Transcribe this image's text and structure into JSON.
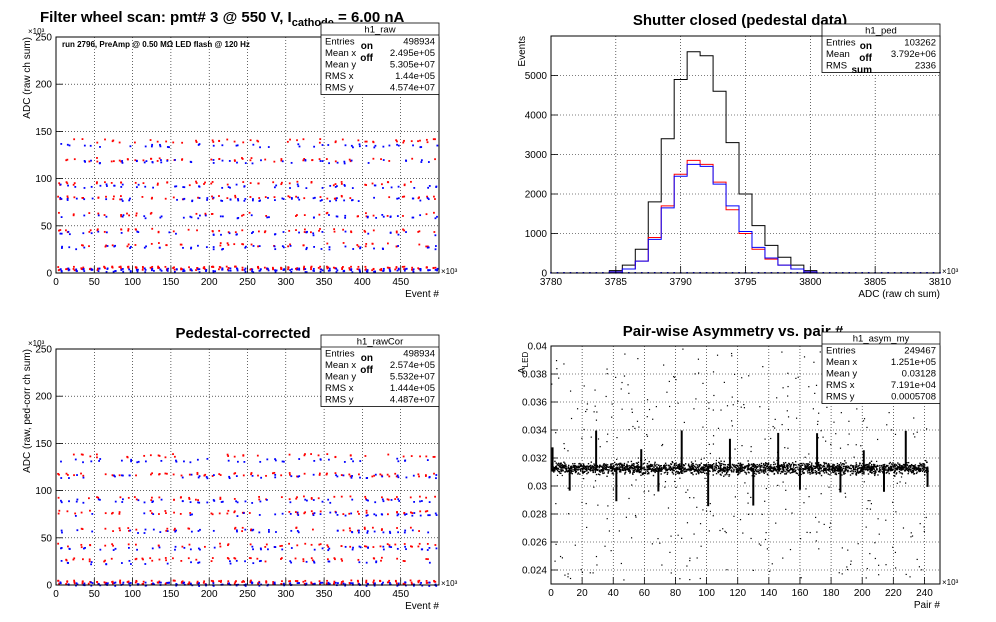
{
  "chart_data": [
    {
      "id": "raw",
      "type": "scatter",
      "title": "Filter wheel scan: pmt#",
      "title_pmt": "3",
      "title_at": "@",
      "title_voltage": "550 V, I",
      "title_sub": "cathode",
      "title_current": "= 6.00 nA",
      "note": "run 2796, PreAmp @ 0.50 MΩ LED flash @  120 Hz",
      "xlabel": "Event #",
      "ylabel": "ADC (raw ch sum)",
      "x_multiplier": "×10³",
      "y_multiplier": "×10³",
      "xlim": [
        0,
        500000
      ],
      "ylim": [
        0,
        250000
      ],
      "x_ticks": [
        "0",
        "50",
        "100",
        "150",
        "200",
        "250",
        "300",
        "350",
        "400",
        "450"
      ],
      "y_ticks": [
        "0",
        "50",
        "100",
        "150",
        "200",
        "250"
      ],
      "grid": true,
      "series": [
        {
          "name": "on",
          "color": "#ff0000",
          "levels": [
            140000,
            120000,
            95000,
            80000,
            62000,
            45000,
            30000,
            5000
          ]
        },
        {
          "name": "off",
          "color": "#0000ff",
          "levels": [
            135000,
            118000,
            92000,
            78000,
            60000,
            42000,
            27000,
            3000
          ]
        }
      ],
      "legend": [
        "on",
        "off"
      ],
      "stats": {
        "name": "h1_raw",
        "rows": [
          {
            "label": "Entries",
            "value": "498934"
          },
          {
            "label": "Mean x",
            "value": "2.495e+05"
          },
          {
            "label": "Mean y",
            "value": "5.305e+07"
          },
          {
            "label": "RMS x",
            "value": "1.44e+05"
          },
          {
            "label": "RMS y",
            "value": "4.574e+07"
          }
        ]
      }
    },
    {
      "id": "ped",
      "type": "line",
      "title": "Shutter closed (pedestal data)",
      "xlabel": "ADC (raw ch sum)",
      "ylabel": "Events",
      "x_multiplier": "×10³",
      "xlim": [
        3780,
        3810
      ],
      "ylim": [
        0,
        6000
      ],
      "x_ticks": [
        "3780",
        "3785",
        "3790",
        "3795",
        "3800",
        "3805",
        "3810"
      ],
      "y_ticks": [
        "0",
        "1000",
        "2000",
        "3000",
        "4000",
        "5000"
      ],
      "grid": true,
      "series": [
        {
          "name": "sum",
          "color": "#000000",
          "x": [
            3784,
            3785,
            3786,
            3787,
            3788,
            3789,
            3790,
            3791,
            3792,
            3793,
            3794,
            3795,
            3796,
            3797,
            3798,
            3799,
            3800,
            3801
          ],
          "values": [
            0,
            60,
            200,
            600,
            1800,
            3400,
            4900,
            5600,
            5500,
            4600,
            3300,
            2000,
            1200,
            700,
            400,
            200,
            60,
            0
          ]
        },
        {
          "name": "on",
          "color": "#ff0000",
          "x": [
            3784,
            3785,
            3786,
            3787,
            3788,
            3789,
            3790,
            3791,
            3792,
            3793,
            3794,
            3795,
            3796,
            3797,
            3798,
            3799,
            3800,
            3801
          ],
          "values": [
            0,
            30,
            100,
            300,
            900,
            1700,
            2500,
            2850,
            2750,
            2300,
            1600,
            1000,
            600,
            350,
            200,
            100,
            30,
            0
          ]
        },
        {
          "name": "off",
          "color": "#0000ff",
          "x": [
            3784,
            3785,
            3786,
            3787,
            3788,
            3789,
            3790,
            3791,
            3792,
            3793,
            3794,
            3795,
            3796,
            3797,
            3798,
            3799,
            3800,
            3801
          ],
          "values": [
            0,
            30,
            100,
            300,
            850,
            1650,
            2450,
            2750,
            2700,
            2250,
            1700,
            1050,
            650,
            380,
            200,
            100,
            30,
            0
          ]
        }
      ],
      "legend": [
        "on",
        "off",
        "sum"
      ],
      "stats": {
        "name": "h1_ped",
        "rows": [
          {
            "label": "Entries",
            "value": "103262"
          },
          {
            "label": "Mean",
            "value": "3.792e+06"
          },
          {
            "label": "RMS",
            "value": "2336"
          }
        ]
      }
    },
    {
      "id": "rawCor",
      "type": "scatter",
      "title": "Pedestal-corrected",
      "xlabel": "Event #",
      "ylabel": "ADC (raw, ped-corr ch sum)",
      "x_multiplier": "×10³",
      "y_multiplier": "×10³",
      "xlim": [
        0,
        500000
      ],
      "ylim": [
        0,
        250000
      ],
      "x_ticks": [
        "0",
        "50",
        "100",
        "150",
        "200",
        "250",
        "300",
        "350",
        "400",
        "450"
      ],
      "y_ticks": [
        "0",
        "50",
        "100",
        "150",
        "200",
        "250"
      ],
      "grid": true,
      "series": [
        {
          "name": "on",
          "color": "#ff0000",
          "levels": [
            137000,
            117000,
            92000,
            77000,
            59000,
            42000,
            27000,
            3000
          ]
        },
        {
          "name": "off",
          "color": "#0000ff",
          "levels": [
            132000,
            115000,
            89000,
            75000,
            57000,
            39000,
            24000,
            1000
          ]
        }
      ],
      "legend": [
        "on",
        "off"
      ],
      "stats": {
        "name": "h1_rawCor",
        "rows": [
          {
            "label": "Entries",
            "value": "498934"
          },
          {
            "label": "Mean x",
            "value": "2.574e+05"
          },
          {
            "label": "Mean y",
            "value": "5.532e+07"
          },
          {
            "label": "RMS x",
            "value": "1.444e+05"
          },
          {
            "label": "RMS y",
            "value": "4.487e+07"
          }
        ]
      }
    },
    {
      "id": "asym",
      "type": "scatter",
      "title": "Pair-wise Asymmetry vs. pair #",
      "xlabel": "Pair #",
      "ylabel": "A",
      "ylabel_sub": "LED",
      "x_multiplier": "×10³",
      "xlim": [
        0,
        250000
      ],
      "ylim": [
        0.023,
        0.04
      ],
      "x_ticks": [
        "0",
        "20",
        "40",
        "60",
        "80",
        "100",
        "120",
        "140",
        "160",
        "180",
        "200",
        "220",
        "240"
      ],
      "y_ticks": [
        "0.024",
        "0.026",
        "0.028",
        "0.03",
        "0.032",
        "0.034",
        "0.036",
        "0.038",
        "0.04"
      ],
      "grid": true,
      "band": {
        "center": 0.0313,
        "width": 0.0004
      },
      "spikes_x": [
        1000,
        12000,
        29000,
        42000,
        58000,
        69000,
        84000,
        101000,
        115000,
        130000,
        146000,
        160000,
        171000,
        186000,
        201000,
        214000,
        228000,
        242000
      ],
      "series": [
        {
          "name": "asym",
          "color": "#000000"
        }
      ],
      "stats": {
        "name": "h1_asym_my",
        "rows": [
          {
            "label": "Entries",
            "value": "249467"
          },
          {
            "label": "Mean x",
            "value": "1.251e+05"
          },
          {
            "label": "Mean y",
            "value": "0.03128"
          },
          {
            "label": "RMS x",
            "value": "7.191e+04"
          },
          {
            "label": "RMS y",
            "value": "0.0005708"
          }
        ]
      }
    }
  ]
}
